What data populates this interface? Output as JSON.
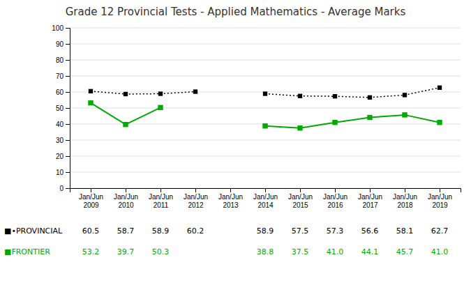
{
  "chart_data": {
    "type": "line",
    "title": "Grade 12 Provincial Tests - Applied Mathematics - Average Marks",
    "categories": [
      "Jan/Jun\n2009",
      "Jan/Jun\n2010",
      "Jan/Jun\n2011",
      "Jan/Jun\n2012",
      "Jan/Jun\n2013",
      "Jan/Jun\n2014",
      "Jan/Jun\n2015",
      "Jan/Jun\n2016",
      "Jan/Jun\n2017",
      "Jan/Jun\n2018",
      "Jan/Jun\n2019"
    ],
    "series": [
      {
        "name": "■•PROVINCIAL",
        "color": "#000000",
        "marker": "square",
        "line_style": "dotted",
        "values": [
          60.5,
          58.7,
          58.9,
          60.2,
          null,
          58.9,
          57.5,
          57.3,
          56.6,
          58.1,
          62.7
        ],
        "value_labels": [
          "60.5",
          "58.7",
          "58.9",
          "60.2",
          null,
          "58.9",
          "57.5",
          "57.3",
          "56.6",
          "58.1",
          "62.7"
        ]
      },
      {
        "name": "■FRONTIER",
        "color": "#00aa00",
        "marker": "square",
        "line_style": "solid",
        "values": [
          53.2,
          39.7,
          50.3,
          null,
          null,
          38.8,
          37.5,
          41.0,
          44.1,
          45.7,
          41.0
        ],
        "value_labels": [
          "53.2",
          "39.7",
          "50.3",
          null,
          null,
          "38.8",
          "37.5",
          "41.0",
          "44.1",
          "45.7",
          "41.0"
        ]
      }
    ],
    "ylim": [
      0,
      100
    ],
    "yticks": [
      0,
      10,
      20,
      30,
      40,
      50,
      60,
      70,
      80,
      90,
      100
    ],
    "grid": true,
    "data_labels": true
  }
}
